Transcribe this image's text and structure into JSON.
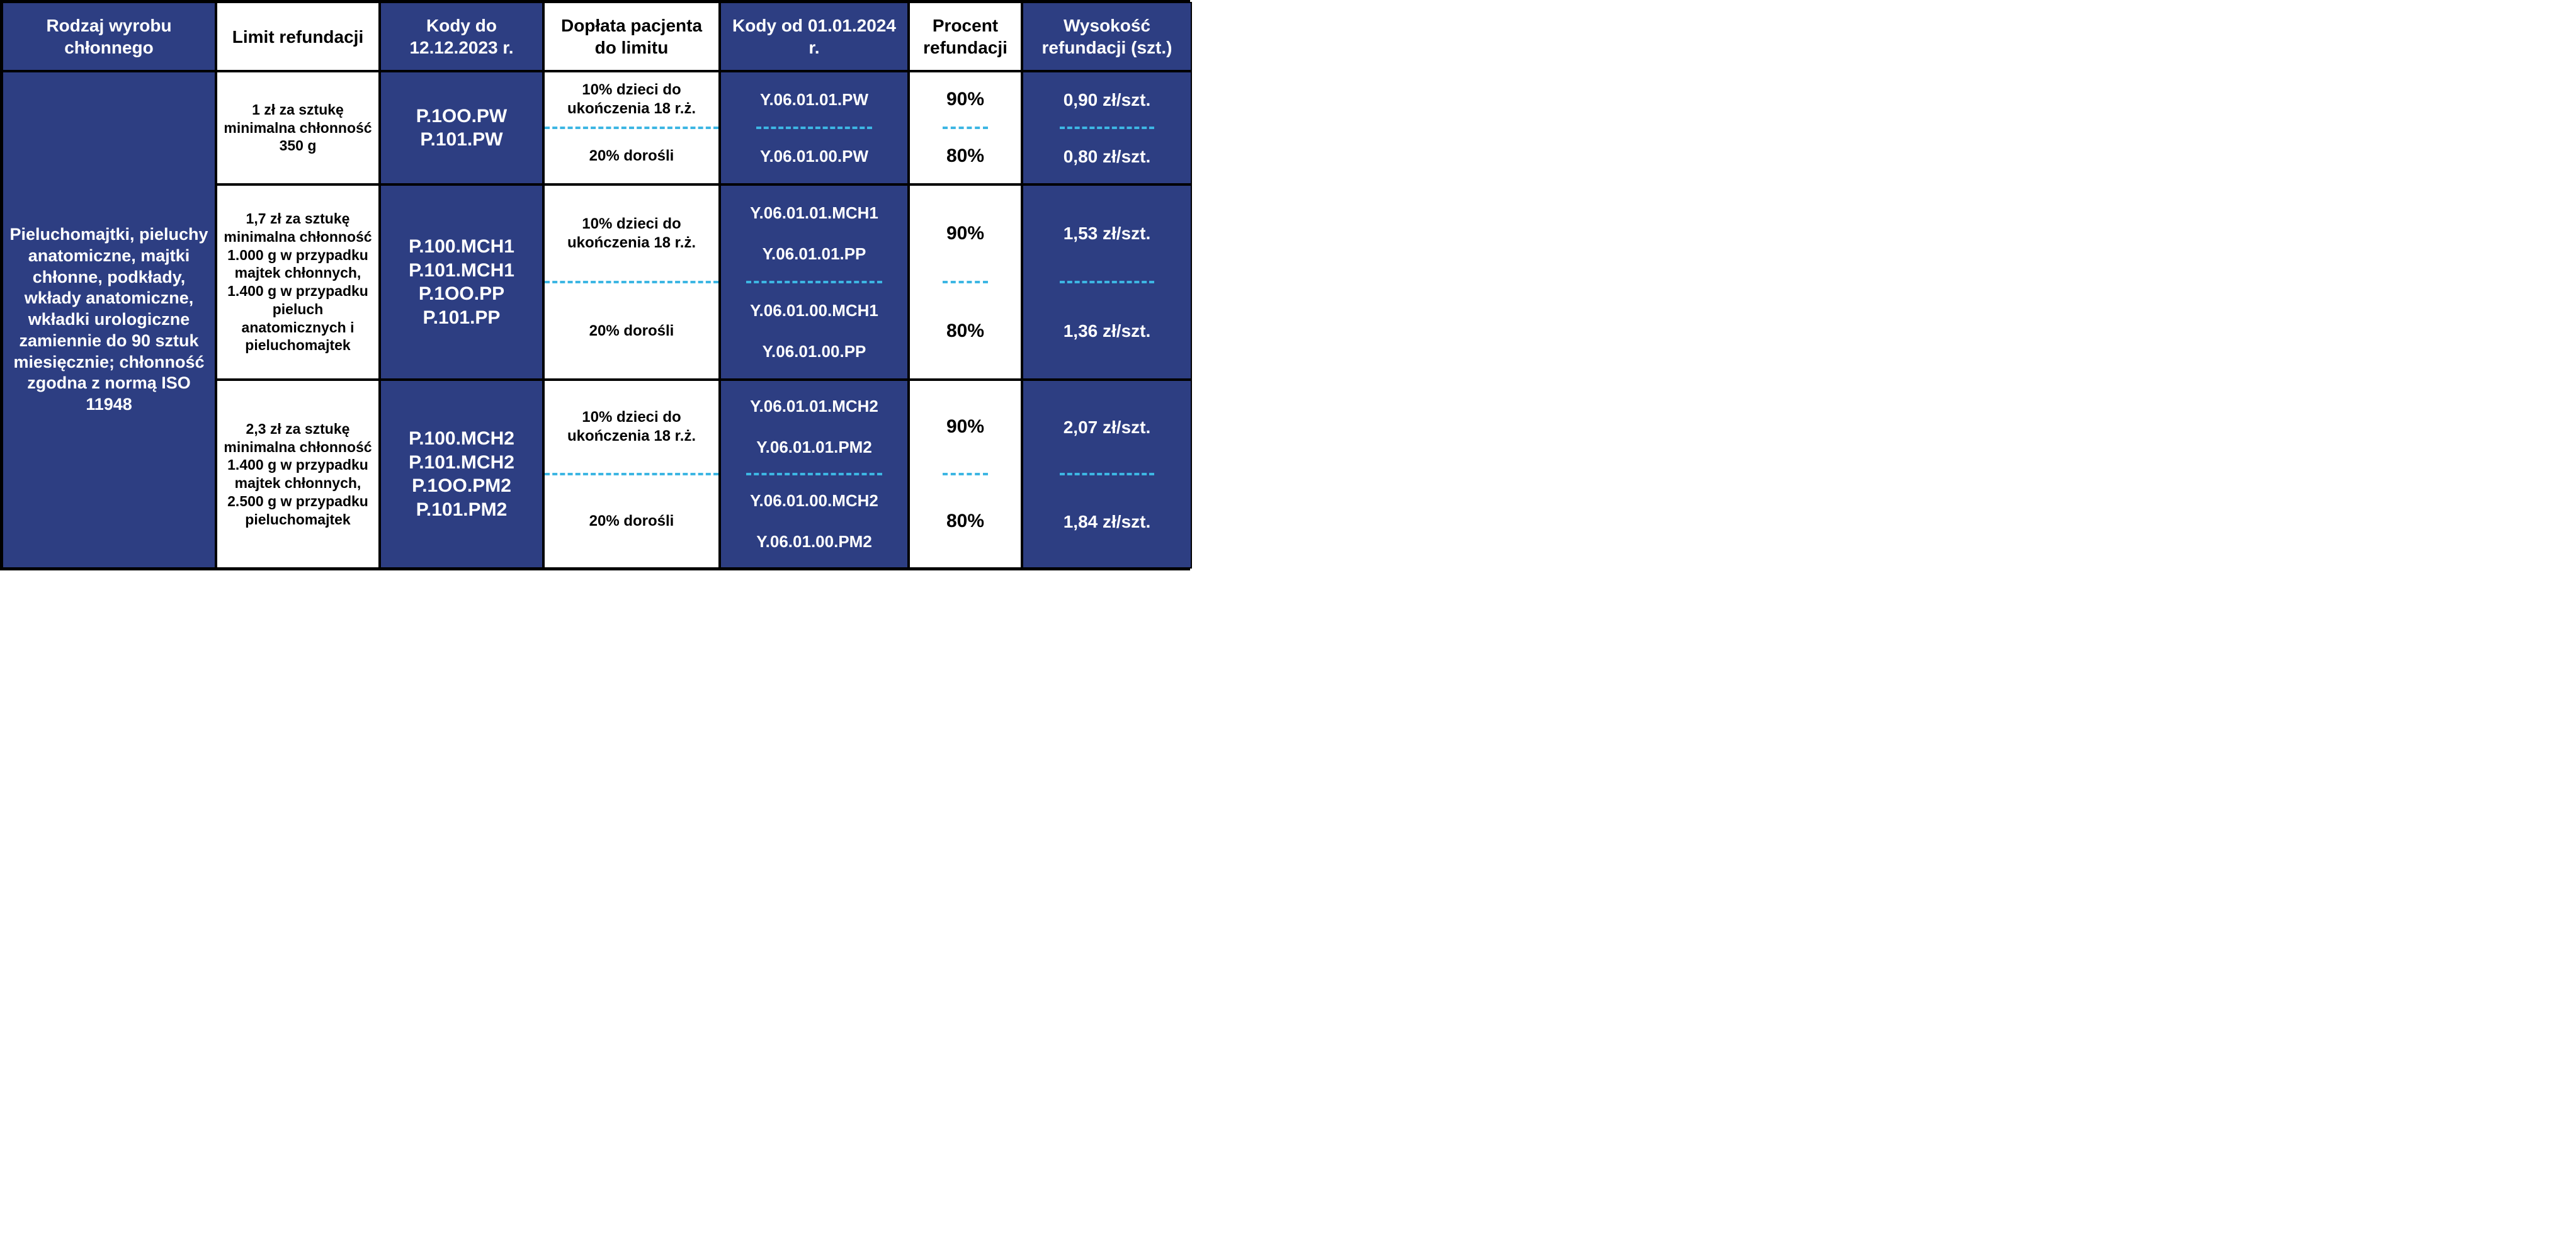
{
  "colors": {
    "blue": "#2d3e82",
    "white": "#ffffff",
    "black": "#000000",
    "dash": "#3db6e3"
  },
  "headers": {
    "col1": "Rodzaj wyrobu chłonnego",
    "col2": "Limit refundacji",
    "col3": "Kody do 12.12.2023 r.",
    "col4": "Dopłata pacjenta do limitu",
    "col5": "Kody od 01.01.2024 r.",
    "col6": "Procent refundacji",
    "col7": "Wysokość refundacji (szt.)"
  },
  "product_type": "Pieluchomajtki, pieluchy anatomiczne, majtki chłonne, podkłady, wkłady anatomiczne, wkładki urologiczne zamiennie do 90 sztuk miesięcznie; chłonność zgodna z normą ISO 11948",
  "tiers": [
    {
      "limit": "1 zł za sztukę minimalna chłonność 350 g",
      "codes_old": [
        "P.1OO.PW",
        "P.101.PW"
      ],
      "rows": [
        {
          "doplata": "10% dzieci do ukończenia 18 r.ż.",
          "codes_new": [
            "Y.06.01.01.PW"
          ],
          "pct": "90%",
          "amt": "0,90 zł/szt."
        },
        {
          "doplata": "20% dorośli",
          "codes_new": [
            "Y.06.01.00.PW"
          ],
          "pct": "80%",
          "amt": "0,80 zł/szt."
        }
      ]
    },
    {
      "limit": "1,7 zł za sztukę minimalna chłonność 1.000 g w przypadku majtek chłonnych, 1.400 g w przypadku pieluch anatomicznych i pieluchomajtek",
      "codes_old": [
        "P.100.MCH1",
        "P.101.MCH1",
        "P.1OO.PP",
        "P.101.PP"
      ],
      "rows": [
        {
          "doplata": "10% dzieci do ukończenia 18 r.ż.",
          "codes_new": [
            "Y.06.01.01.MCH1",
            "Y.06.01.01.PP"
          ],
          "pct": "90%",
          "amt": "1,53 zł/szt."
        },
        {
          "doplata": "20% dorośli",
          "codes_new": [
            "Y.06.01.00.MCH1",
            "Y.06.01.00.PP"
          ],
          "pct": "80%",
          "amt": "1,36 zł/szt."
        }
      ]
    },
    {
      "limit": "2,3 zł za sztukę minimalna chłonność 1.400 g w przypadku majtek chłonnych, 2.500 g w przypadku pieluchomajtek",
      "codes_old": [
        "P.100.MCH2",
        "P.101.MCH2",
        "P.1OO.PM2",
        "P.101.PM2"
      ],
      "rows": [
        {
          "doplata": "10% dzieci do ukończenia 18 r.ż.",
          "codes_new": [
            "Y.06.01.01.MCH2",
            "Y.06.01.01.PM2"
          ],
          "pct": "90%",
          "amt": "2,07 zł/szt."
        },
        {
          "doplata": "20% dorośli",
          "codes_new": [
            "Y.06.01.00.MCH2",
            "Y.06.01.00.PM2"
          ],
          "pct": "80%",
          "amt": "1,84 zł/szt."
        }
      ]
    }
  ]
}
